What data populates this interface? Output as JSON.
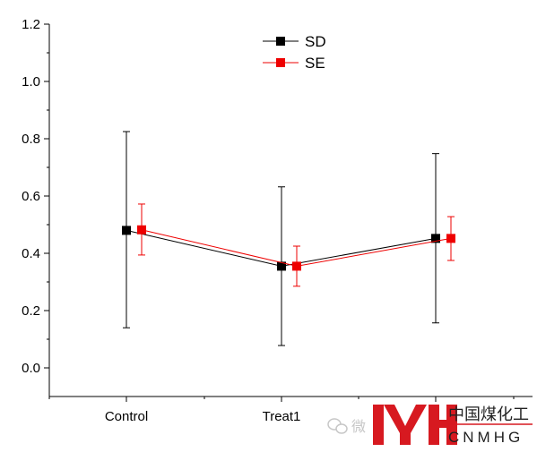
{
  "chart_data": {
    "type": "line",
    "categories": [
      "Control",
      "Treat1",
      ""
    ],
    "ylim": [
      -0.1,
      1.2
    ],
    "yticks": [
      "0.0",
      "0.2",
      "0.4",
      "0.6",
      "0.8",
      "1.0",
      "1.2"
    ],
    "grid": false,
    "legend_position": "top-center",
    "series": [
      {
        "name": "SD",
        "color": "#000000",
        "values": [
          0.48,
          0.355,
          0.452
        ],
        "err_low": [
          0.14,
          0.078,
          0.157
        ],
        "err_high": [
          0.825,
          0.632,
          0.748
        ]
      },
      {
        "name": "SE",
        "color": "#ee0000",
        "values": [
          0.482,
          0.355,
          0.452
        ],
        "err_low": [
          0.394,
          0.285,
          0.375
        ],
        "err_high": [
          0.572,
          0.425,
          0.528
        ]
      }
    ]
  },
  "watermark": {
    "wechat_text": "微",
    "logo_chinese": "中国煤化工",
    "logo_english": "CNMHG"
  },
  "colors": {
    "logo_red": "#d71920"
  }
}
